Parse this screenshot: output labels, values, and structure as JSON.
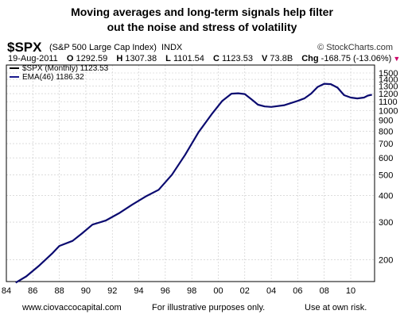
{
  "heading": {
    "line1": "Moving averages and long-term signals help filter",
    "line2": "out the noise and stress of volatility"
  },
  "header": {
    "symbol": "$SPX",
    "description": "(S&P 500 Large Cap Index)",
    "index_tag": "INDX",
    "source": "© StockCharts.com",
    "date": "19-Aug-2011",
    "open_label": "O",
    "open": "1292.59",
    "high_label": "H",
    "high": "1307.38",
    "low_label": "L",
    "low": "1101.54",
    "close_label": "C",
    "close": "1123.53",
    "volume_label": "V",
    "volume": "73.8B",
    "change_label": "Chg",
    "change": "-168.75 (-13.06%)"
  },
  "footer": {
    "website": "www.ciovaccocapital.com",
    "disclaimer1": "For illustrative purposes only.",
    "disclaimer2": "Use at own risk."
  },
  "colors": {
    "line": "#1a1a8c",
    "ema": "#0b0b70",
    "grid": "#c8c8c8",
    "legend_swatch_price": "#000000",
    "legend_swatch_ema": "#1a1a8c"
  },
  "chart_data": {
    "type": "line",
    "scale": "log",
    "ylim": [
      150,
      1500
    ],
    "xlim": [
      1984,
      2011.8
    ],
    "grid": true,
    "legend_position": "top-left",
    "x_tick_labels": [
      "84",
      "86",
      "88",
      "90",
      "92",
      "94",
      "96",
      "98",
      "00",
      "02",
      "04",
      "06",
      "08",
      "10"
    ],
    "x_tick_values": [
      1984,
      1986,
      1988,
      1990,
      1992,
      1994,
      1996,
      1998,
      2000,
      2002,
      2004,
      2006,
      2008,
      2010
    ],
    "y_tick_labels": [
      "1500",
      "1400",
      "1300",
      "1200",
      "1100",
      "1000",
      "900",
      "800",
      "700",
      "600",
      "500",
      "400",
      "300",
      "200"
    ],
    "y_tick_values": [
      1500,
      1400,
      1300,
      1200,
      1100,
      1000,
      900,
      800,
      700,
      600,
      500,
      400,
      300,
      200
    ],
    "legend": [
      {
        "label": "$SPX (Monthly) 1123.53"
      },
      {
        "label": "EMA(46) 1186.32"
      }
    ],
    "series": [
      {
        "name": "EMA(46)",
        "x": [
          1984.7,
          1985.5,
          1986.5,
          1987.5,
          1988.0,
          1989.0,
          1989.7,
          1990.5,
          1991.5,
          1992.5,
          1993.5,
          1994.5,
          1995.5,
          1996.5,
          1997.5,
          1998.5,
          1999.5,
          2000.3,
          2001.0,
          2001.5,
          2002.0,
          2002.5,
          2003.0,
          2003.5,
          2004.0,
          2005.0,
          2006.0,
          2006.5,
          2007.0,
          2007.5,
          2008.0,
          2008.5,
          2009.0,
          2009.5,
          2010.0,
          2010.5,
          2011.0,
          2011.3,
          2011.6
        ],
        "y": [
          156,
          167,
          188,
          215,
          232,
          245,
          265,
          292,
          305,
          330,
          362,
          395,
          425,
          500,
          620,
          790,
          960,
          1110,
          1200,
          1205,
          1195,
          1130,
          1065,
          1045,
          1040,
          1060,
          1110,
          1140,
          1200,
          1290,
          1335,
          1330,
          1280,
          1180,
          1150,
          1140,
          1150,
          1175,
          1186
        ]
      }
    ]
  }
}
